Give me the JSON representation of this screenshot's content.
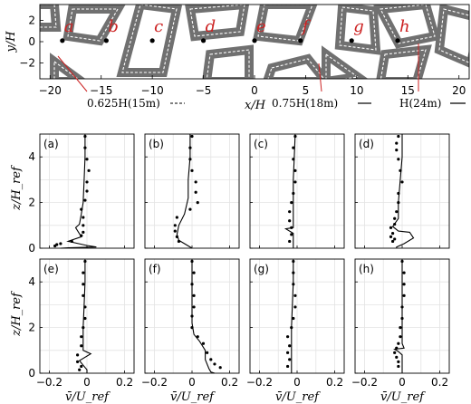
{
  "chart_data": [
    {
      "type": "map",
      "xlabel": "x/H",
      "ylabel": "y/H",
      "xlim": [
        -21,
        21
      ],
      "ylim": [
        -3.5,
        3.5
      ],
      "x_ticks": [
        "-20",
        "-15",
        "-10",
        "-5",
        "0",
        "5",
        "10",
        "15",
        "20"
      ],
      "y_ticks": [
        "2",
        "0",
        "-2"
      ],
      "sites": [
        {
          "label": "a",
          "x": -18.8,
          "y": 0.1
        },
        {
          "label": "b",
          "x": -14.5,
          "y": 0.1
        },
        {
          "label": "c",
          "x": -10.0,
          "y": 0.1
        },
        {
          "label": "d",
          "x": -5.0,
          "y": 0.1
        },
        {
          "label": "e",
          "x": 0.0,
          "y": 0.1
        },
        {
          "label": "f",
          "x": 4.5,
          "y": 0.1
        },
        {
          "label": "g",
          "x": 9.5,
          "y": 0.1
        },
        {
          "label": "h",
          "x": 14.0,
          "y": 0.1
        }
      ],
      "building_height_labels": [
        "0.625H(15m)",
        "0.75H(18m)",
        "H(24m)"
      ]
    },
    {
      "type": "line",
      "xlabel": "v̄/U_ref",
      "ylabel": "z/H_ref",
      "xlim": [
        -0.25,
        0.25
      ],
      "ylim": [
        0,
        5
      ],
      "x_ticks": [
        "-0.2",
        "0",
        "0.2"
      ],
      "y_ticks": [
        "0",
        "2",
        "4"
      ],
      "panels": [
        {
          "label": "(a)",
          "line": [
            [
              -0.01,
              5
            ],
            [
              -0.01,
              4
            ],
            [
              -0.015,
              3
            ],
            [
              -0.02,
              2
            ],
            [
              -0.03,
              1.5
            ],
            [
              -0.04,
              1.05
            ],
            [
              -0.06,
              0.9
            ],
            [
              -0.03,
              0.5
            ],
            [
              -0.1,
              0.3
            ],
            [
              0.0,
              0.12
            ],
            [
              0.05,
              0.05
            ],
            [
              -0.1,
              0.02
            ],
            [
              -0.14,
              0
            ]
          ],
          "points": [
            [
              -0.01,
              4.9
            ],
            [
              -0.01,
              4.4
            ],
            [
              0.0,
              3.9
            ],
            [
              0.01,
              3.4
            ],
            [
              0.0,
              2.9
            ],
            [
              0.0,
              2.5
            ],
            [
              -0.01,
              2.1
            ],
            [
              -0.03,
              1.7
            ],
            [
              -0.02,
              1.35
            ],
            [
              -0.02,
              1.0
            ],
            [
              -0.02,
              0.7
            ],
            [
              -0.03,
              0.55
            ],
            [
              -0.08,
              0.3
            ],
            [
              -0.14,
              0.2
            ],
            [
              -0.16,
              0.16
            ],
            [
              -0.17,
              0.1
            ]
          ]
        },
        {
          "label": "(b)",
          "line": [
            [
              -0.01,
              5
            ],
            [
              -0.01,
              4
            ],
            [
              -0.02,
              3
            ],
            [
              -0.02,
              2.2
            ],
            [
              -0.04,
              1.5
            ],
            [
              -0.07,
              1.0
            ],
            [
              -0.08,
              0.6
            ],
            [
              -0.07,
              0.35
            ],
            [
              -0.04,
              0.2
            ],
            [
              0.0,
              0
            ]
          ],
          "points": [
            [
              0.0,
              4.9
            ],
            [
              -0.01,
              4.4
            ],
            [
              -0.01,
              3.9
            ],
            [
              0.0,
              3.4
            ],
            [
              0.02,
              2.9
            ],
            [
              0.02,
              2.45
            ],
            [
              0.03,
              2.0
            ],
            [
              -0.01,
              1.7
            ],
            [
              -0.08,
              1.35
            ],
            [
              -0.09,
              1.0
            ],
            [
              -0.09,
              0.75
            ],
            [
              -0.08,
              0.5
            ],
            [
              -0.07,
              0.3
            ]
          ]
        },
        {
          "label": "(c)",
          "line": [
            [
              -0.01,
              5
            ],
            [
              -0.015,
              4
            ],
            [
              -0.02,
              3
            ],
            [
              -0.02,
              2
            ],
            [
              -0.02,
              1.4
            ],
            [
              -0.02,
              0.9
            ],
            [
              -0.06,
              0.85
            ],
            [
              -0.03,
              0.7
            ],
            [
              -0.02,
              0.65
            ],
            [
              -0.02,
              0
            ]
          ],
          "points": [
            [
              -0.01,
              4.9
            ],
            [
              -0.02,
              4.4
            ],
            [
              -0.02,
              3.9
            ],
            [
              -0.01,
              3.4
            ],
            [
              -0.01,
              2.9
            ],
            [
              -0.02,
              2.4
            ],
            [
              -0.03,
              2.0
            ],
            [
              -0.04,
              1.6
            ],
            [
              -0.04,
              1.2
            ],
            [
              -0.03,
              0.9
            ],
            [
              -0.03,
              0.6
            ],
            [
              -0.04,
              0.3
            ]
          ]
        },
        {
          "label": "(d)",
          "line": [
            [
              0.0,
              5
            ],
            [
              0.0,
              4
            ],
            [
              -0.01,
              3
            ],
            [
              -0.02,
              2
            ],
            [
              -0.02,
              1.3
            ],
            [
              -0.05,
              0.95
            ],
            [
              -0.02,
              0.75
            ],
            [
              0.04,
              0.7
            ],
            [
              0.06,
              0.45
            ],
            [
              0.01,
              0.2
            ],
            [
              -0.03,
              0.05
            ],
            [
              -0.03,
              0
            ]
          ],
          "points": [
            [
              -0.02,
              4.9
            ],
            [
              -0.03,
              4.6
            ],
            [
              -0.03,
              4.3
            ],
            [
              -0.02,
              3.9
            ],
            [
              -0.01,
              3.4
            ],
            [
              0.0,
              2.9
            ],
            [
              -0.02,
              2.4
            ],
            [
              -0.02,
              2.0
            ],
            [
              -0.03,
              1.6
            ],
            [
              -0.04,
              1.3
            ],
            [
              -0.04,
              1.05
            ],
            [
              -0.06,
              0.9
            ],
            [
              -0.05,
              0.65
            ],
            [
              -0.06,
              0.5
            ],
            [
              -0.04,
              0.4
            ],
            [
              -0.05,
              0.3
            ]
          ]
        },
        {
          "label": "(e)",
          "line": [
            [
              -0.01,
              5
            ],
            [
              -0.01,
              4
            ],
            [
              -0.015,
              3
            ],
            [
              -0.02,
              2
            ],
            [
              -0.02,
              1.3
            ],
            [
              -0.02,
              1.0
            ],
            [
              0.02,
              0.85
            ],
            [
              -0.04,
              0.55
            ],
            [
              -0.02,
              0.35
            ],
            [
              0.0,
              0.15
            ],
            [
              0.0,
              0
            ]
          ],
          "points": [
            [
              -0.01,
              4.9
            ],
            [
              -0.02,
              4.4
            ],
            [
              -0.02,
              3.9
            ],
            [
              -0.02,
              3.4
            ],
            [
              -0.01,
              2.9
            ],
            [
              -0.01,
              2.4
            ],
            [
              -0.02,
              2.0
            ],
            [
              -0.03,
              1.6
            ],
            [
              -0.03,
              1.2
            ],
            [
              -0.05,
              0.8
            ],
            [
              -0.05,
              0.5
            ],
            [
              -0.03,
              0.3
            ],
            [
              -0.04,
              0.15
            ]
          ]
        },
        {
          "label": "(f)",
          "line": [
            [
              0.0,
              5
            ],
            [
              0.0,
              4
            ],
            [
              0.0,
              3
            ],
            [
              0.0,
              2.2
            ],
            [
              0.01,
              1.7
            ],
            [
              0.04,
              1.4
            ],
            [
              0.07,
              1.0
            ],
            [
              0.07,
              0.6
            ],
            [
              0.09,
              0.2
            ],
            [
              0.1,
              0.05
            ],
            [
              0.12,
              0
            ]
          ],
          "points": [
            [
              0.0,
              4.9
            ],
            [
              0.01,
              4.4
            ],
            [
              0.0,
              3.9
            ],
            [
              0.01,
              3.4
            ],
            [
              0.01,
              2.9
            ],
            [
              0.0,
              2.5
            ],
            [
              0.0,
              2.0
            ],
            [
              0.03,
              1.6
            ],
            [
              0.06,
              1.3
            ],
            [
              0.08,
              0.9
            ],
            [
              0.1,
              0.6
            ],
            [
              0.12,
              0.4
            ],
            [
              0.15,
              0.25
            ]
          ]
        },
        {
          "label": "(g)",
          "line": [
            [
              -0.02,
              5
            ],
            [
              -0.02,
              4
            ],
            [
              -0.025,
              3
            ],
            [
              -0.03,
              2
            ],
            [
              -0.03,
              1.4
            ],
            [
              -0.03,
              0.9
            ],
            [
              -0.03,
              0.5
            ],
            [
              -0.03,
              0.2
            ],
            [
              -0.03,
              0
            ]
          ],
          "points": [
            [
              -0.02,
              4.9
            ],
            [
              -0.02,
              4.4
            ],
            [
              -0.02,
              3.9
            ],
            [
              -0.01,
              3.4
            ],
            [
              -0.01,
              2.9
            ],
            [
              -0.02,
              2.4
            ],
            [
              -0.03,
              2.0
            ],
            [
              -0.05,
              1.6
            ],
            [
              -0.04,
              1.2
            ],
            [
              -0.05,
              0.9
            ],
            [
              -0.04,
              0.6
            ],
            [
              -0.05,
              0.3
            ]
          ]
        },
        {
          "label": "(h)",
          "line": [
            [
              0.0,
              5
            ],
            [
              0.0,
              4
            ],
            [
              0.0,
              3
            ],
            [
              0.0,
              2
            ],
            [
              0.0,
              1.3
            ],
            [
              0.01,
              1.1
            ],
            [
              -0.04,
              1.05
            ],
            [
              -0.02,
              0.95
            ],
            [
              0.0,
              0.8
            ],
            [
              0.0,
              0.3
            ],
            [
              0.0,
              0
            ]
          ],
          "points": [
            [
              0.0,
              4.9
            ],
            [
              0.01,
              4.4
            ],
            [
              0.01,
              3.9
            ],
            [
              0.01,
              3.4
            ],
            [
              0.0,
              2.9
            ],
            [
              0.0,
              2.4
            ],
            [
              -0.01,
              2.0
            ],
            [
              -0.01,
              1.6
            ],
            [
              -0.02,
              1.3
            ],
            [
              -0.03,
              1.1
            ],
            [
              -0.04,
              0.9
            ],
            [
              -0.03,
              0.7
            ],
            [
              -0.02,
              0.5
            ],
            [
              -0.02,
              0.3
            ]
          ]
        }
      ]
    }
  ]
}
